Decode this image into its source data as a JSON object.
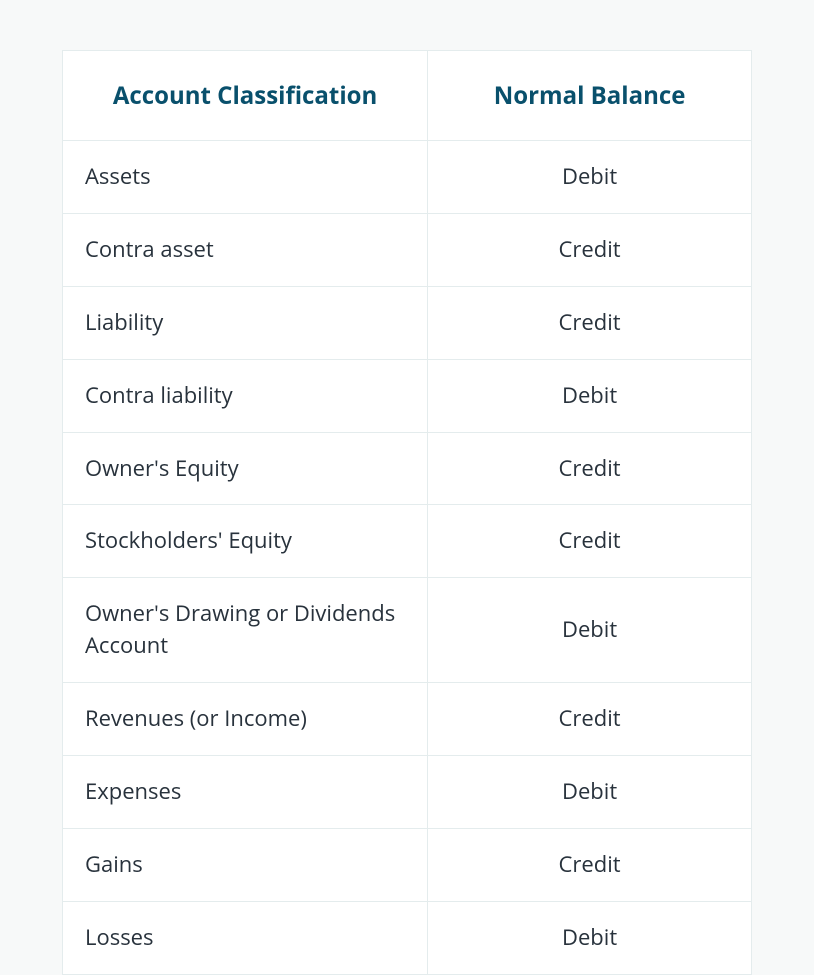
{
  "table": {
    "type": "table",
    "background_color": "#f7f9f9",
    "cell_background": "#ffffff",
    "border_color": "#e4eced",
    "header_text_color": "#09506c",
    "body_text_color": "#28323c",
    "header_fontsize": 24,
    "body_fontsize": 22,
    "columns": [
      {
        "key": "classification",
        "label": "Account Classification",
        "align": "left",
        "width_pct": 53
      },
      {
        "key": "balance",
        "label": "Normal Balance",
        "align": "center",
        "width_pct": 47
      }
    ],
    "rows": [
      {
        "classification": "Assets",
        "balance": "Debit"
      },
      {
        "classification": "Contra asset",
        "balance": "Credit"
      },
      {
        "classification": "Liability",
        "balance": "Credit"
      },
      {
        "classification": "Contra liability",
        "balance": "Debit"
      },
      {
        "classification": "Owner's Equity",
        "balance": "Credit"
      },
      {
        "classification": "Stockholders' Equity",
        "balance": "Credit"
      },
      {
        "classification": "Owner's Drawing or Dividends Account",
        "balance": "Debit"
      },
      {
        "classification": "Revenues (or Income)",
        "balance": "Credit"
      },
      {
        "classification": "Expenses",
        "balance": "Debit"
      },
      {
        "classification": "Gains",
        "balance": "Credit"
      },
      {
        "classification": "Losses",
        "balance": "Debit"
      }
    ]
  }
}
